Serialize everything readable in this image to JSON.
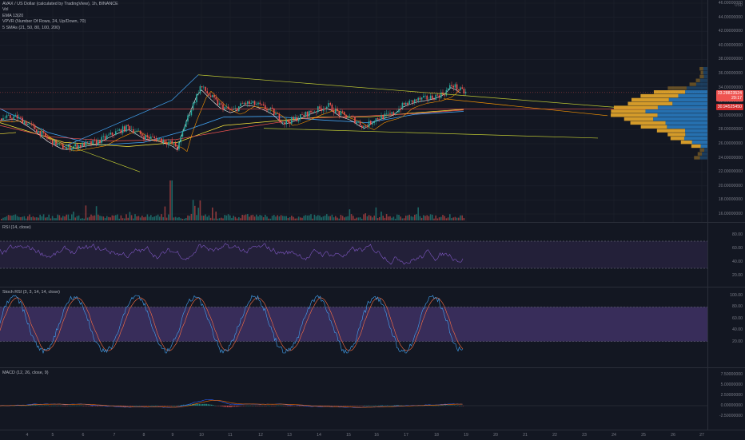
{
  "legend": {
    "title": "AVAX / US Dollar (calculated by TradingView), 1h, BINANCE",
    "lines": [
      "Vol",
      "EMA 13|20",
      "VPVR (Number Of Rows, 24, Up/Down, 70)",
      "5 SMAs (21, 50, 80, 100, 200)"
    ]
  },
  "price_axis": {
    "unit": "USD",
    "ticks": [
      "46.00000000",
      "44.00000000",
      "42.00000000",
      "40.00000000",
      "38.00000000",
      "36.00000000",
      "34.00000000",
      "32.00000000",
      "30.00000000",
      "28.00000000",
      "26.00000000",
      "24.00000000",
      "22.00000000",
      "20.00000000",
      "18.00000000",
      "16.00000000"
    ],
    "badge_current": "33.28823524",
    "badge_current_sub": "29:17",
    "badge_level": "30.94525450"
  },
  "rsi": {
    "label": "RSI (14, close)",
    "ticks": [
      "80.00",
      "60.00",
      "40.00",
      "20.00"
    ]
  },
  "stoch": {
    "label": "Stoch RSI (3, 3, 14, 14, close)",
    "ticks": [
      "100.00",
      "80.00",
      "60.00",
      "40.00",
      "20.00"
    ]
  },
  "macd": {
    "label": "MACD (12, 26, close, 9)",
    "ticks": [
      "7.50000000",
      "5.00000000",
      "2.50000000",
      "0.00000000",
      "-2.50000000"
    ]
  },
  "time_axis": [
    "4",
    "5",
    "6",
    "7",
    "8",
    "9",
    "10",
    "11",
    "12",
    "13",
    "14",
    "15",
    "16",
    "17",
    "18",
    "19",
    "20",
    "21",
    "22",
    "23",
    "24",
    "25",
    "26",
    "27"
  ],
  "colors": {
    "bg": "#131722",
    "up": "#26a69a",
    "down": "#ef5350",
    "rsi": "#7e57c2",
    "vpvr_up": "#f7b32b",
    "vpvr_down": "#2a80c8"
  }
}
